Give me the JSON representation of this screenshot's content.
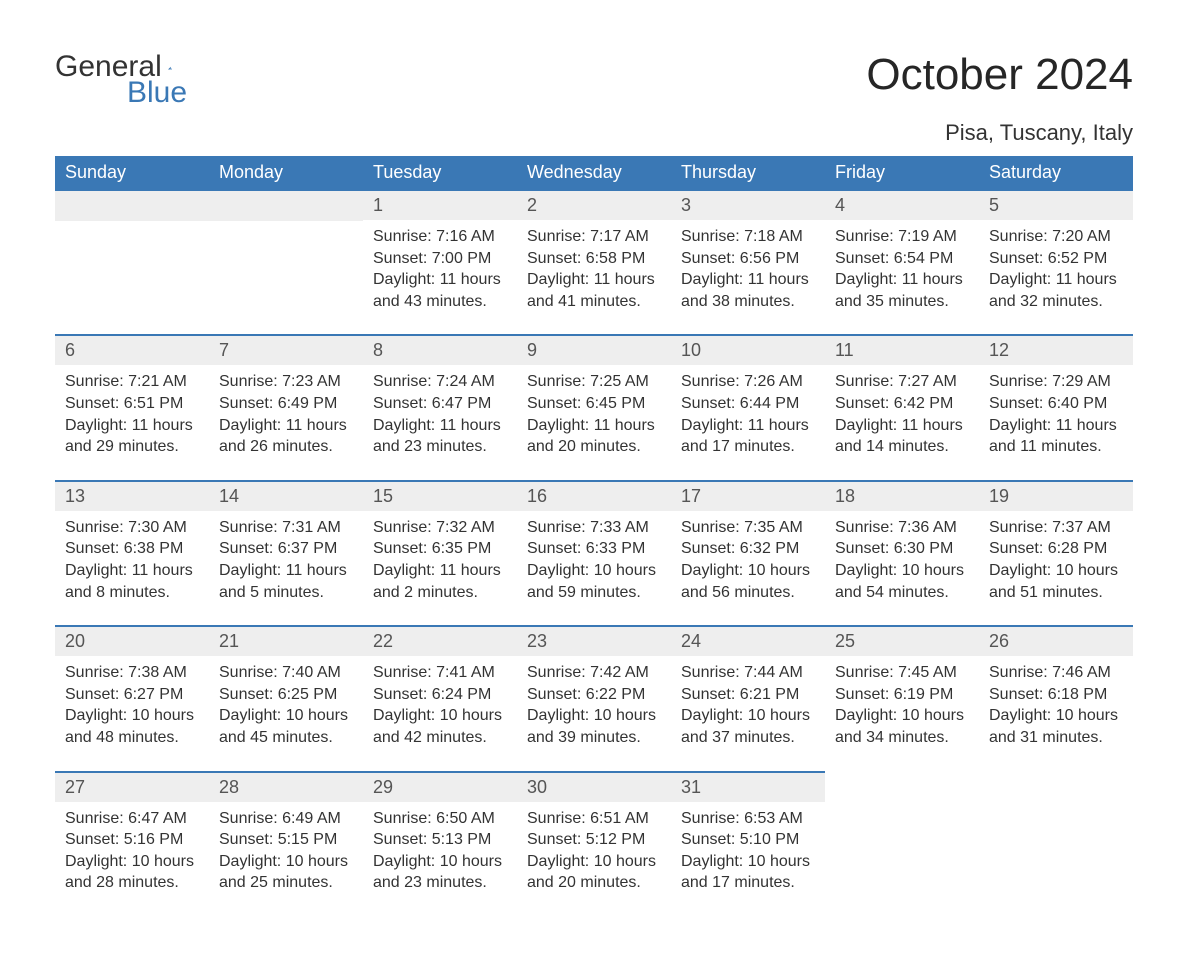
{
  "brand": {
    "part1": "General",
    "part2": "Blue"
  },
  "title": "October 2024",
  "location": "Pisa, Tuscany, Italy",
  "colors": {
    "header_bg": "#3a78b5",
    "header_text": "#ffffff",
    "daynum_bg": "#eeeeee",
    "daynum_border": "#3a78b5",
    "body_bg": "#ffffff",
    "text": "#333333"
  },
  "day_headers": [
    "Sunday",
    "Monday",
    "Tuesday",
    "Wednesday",
    "Thursday",
    "Friday",
    "Saturday"
  ],
  "weeks": [
    [
      {
        "day": "",
        "sunrise": "",
        "sunset": "",
        "daylight": ""
      },
      {
        "day": "",
        "sunrise": "",
        "sunset": "",
        "daylight": ""
      },
      {
        "day": "1",
        "sunrise": "Sunrise: 7:16 AM",
        "sunset": "Sunset: 7:00 PM",
        "daylight": "Daylight: 11 hours and 43 minutes."
      },
      {
        "day": "2",
        "sunrise": "Sunrise: 7:17 AM",
        "sunset": "Sunset: 6:58 PM",
        "daylight": "Daylight: 11 hours and 41 minutes."
      },
      {
        "day": "3",
        "sunrise": "Sunrise: 7:18 AM",
        "sunset": "Sunset: 6:56 PM",
        "daylight": "Daylight: 11 hours and 38 minutes."
      },
      {
        "day": "4",
        "sunrise": "Sunrise: 7:19 AM",
        "sunset": "Sunset: 6:54 PM",
        "daylight": "Daylight: 11 hours and 35 minutes."
      },
      {
        "day": "5",
        "sunrise": "Sunrise: 7:20 AM",
        "sunset": "Sunset: 6:52 PM",
        "daylight": "Daylight: 11 hours and 32 minutes."
      }
    ],
    [
      {
        "day": "6",
        "sunrise": "Sunrise: 7:21 AM",
        "sunset": "Sunset: 6:51 PM",
        "daylight": "Daylight: 11 hours and 29 minutes."
      },
      {
        "day": "7",
        "sunrise": "Sunrise: 7:23 AM",
        "sunset": "Sunset: 6:49 PM",
        "daylight": "Daylight: 11 hours and 26 minutes."
      },
      {
        "day": "8",
        "sunrise": "Sunrise: 7:24 AM",
        "sunset": "Sunset: 6:47 PM",
        "daylight": "Daylight: 11 hours and 23 minutes."
      },
      {
        "day": "9",
        "sunrise": "Sunrise: 7:25 AM",
        "sunset": "Sunset: 6:45 PM",
        "daylight": "Daylight: 11 hours and 20 minutes."
      },
      {
        "day": "10",
        "sunrise": "Sunrise: 7:26 AM",
        "sunset": "Sunset: 6:44 PM",
        "daylight": "Daylight: 11 hours and 17 minutes."
      },
      {
        "day": "11",
        "sunrise": "Sunrise: 7:27 AM",
        "sunset": "Sunset: 6:42 PM",
        "daylight": "Daylight: 11 hours and 14 minutes."
      },
      {
        "day": "12",
        "sunrise": "Sunrise: 7:29 AM",
        "sunset": "Sunset: 6:40 PM",
        "daylight": "Daylight: 11 hours and 11 minutes."
      }
    ],
    [
      {
        "day": "13",
        "sunrise": "Sunrise: 7:30 AM",
        "sunset": "Sunset: 6:38 PM",
        "daylight": "Daylight: 11 hours and 8 minutes."
      },
      {
        "day": "14",
        "sunrise": "Sunrise: 7:31 AM",
        "sunset": "Sunset: 6:37 PM",
        "daylight": "Daylight: 11 hours and 5 minutes."
      },
      {
        "day": "15",
        "sunrise": "Sunrise: 7:32 AM",
        "sunset": "Sunset: 6:35 PM",
        "daylight": "Daylight: 11 hours and 2 minutes."
      },
      {
        "day": "16",
        "sunrise": "Sunrise: 7:33 AM",
        "sunset": "Sunset: 6:33 PM",
        "daylight": "Daylight: 10 hours and 59 minutes."
      },
      {
        "day": "17",
        "sunrise": "Sunrise: 7:35 AM",
        "sunset": "Sunset: 6:32 PM",
        "daylight": "Daylight: 10 hours and 56 minutes."
      },
      {
        "day": "18",
        "sunrise": "Sunrise: 7:36 AM",
        "sunset": "Sunset: 6:30 PM",
        "daylight": "Daylight: 10 hours and 54 minutes."
      },
      {
        "day": "19",
        "sunrise": "Sunrise: 7:37 AM",
        "sunset": "Sunset: 6:28 PM",
        "daylight": "Daylight: 10 hours and 51 minutes."
      }
    ],
    [
      {
        "day": "20",
        "sunrise": "Sunrise: 7:38 AM",
        "sunset": "Sunset: 6:27 PM",
        "daylight": "Daylight: 10 hours and 48 minutes."
      },
      {
        "day": "21",
        "sunrise": "Sunrise: 7:40 AM",
        "sunset": "Sunset: 6:25 PM",
        "daylight": "Daylight: 10 hours and 45 minutes."
      },
      {
        "day": "22",
        "sunrise": "Sunrise: 7:41 AM",
        "sunset": "Sunset: 6:24 PM",
        "daylight": "Daylight: 10 hours and 42 minutes."
      },
      {
        "day": "23",
        "sunrise": "Sunrise: 7:42 AM",
        "sunset": "Sunset: 6:22 PM",
        "daylight": "Daylight: 10 hours and 39 minutes."
      },
      {
        "day": "24",
        "sunrise": "Sunrise: 7:44 AM",
        "sunset": "Sunset: 6:21 PM",
        "daylight": "Daylight: 10 hours and 37 minutes."
      },
      {
        "day": "25",
        "sunrise": "Sunrise: 7:45 AM",
        "sunset": "Sunset: 6:19 PM",
        "daylight": "Daylight: 10 hours and 34 minutes."
      },
      {
        "day": "26",
        "sunrise": "Sunrise: 7:46 AM",
        "sunset": "Sunset: 6:18 PM",
        "daylight": "Daylight: 10 hours and 31 minutes."
      }
    ],
    [
      {
        "day": "27",
        "sunrise": "Sunrise: 6:47 AM",
        "sunset": "Sunset: 5:16 PM",
        "daylight": "Daylight: 10 hours and 28 minutes."
      },
      {
        "day": "28",
        "sunrise": "Sunrise: 6:49 AM",
        "sunset": "Sunset: 5:15 PM",
        "daylight": "Daylight: 10 hours and 25 minutes."
      },
      {
        "day": "29",
        "sunrise": "Sunrise: 6:50 AM",
        "sunset": "Sunset: 5:13 PM",
        "daylight": "Daylight: 10 hours and 23 minutes."
      },
      {
        "day": "30",
        "sunrise": "Sunrise: 6:51 AM",
        "sunset": "Sunset: 5:12 PM",
        "daylight": "Daylight: 10 hours and 20 minutes."
      },
      {
        "day": "31",
        "sunrise": "Sunrise: 6:53 AM",
        "sunset": "Sunset: 5:10 PM",
        "daylight": "Daylight: 10 hours and 17 minutes."
      },
      {
        "day": "",
        "sunrise": "",
        "sunset": "",
        "daylight": ""
      },
      {
        "day": "",
        "sunrise": "",
        "sunset": "",
        "daylight": ""
      }
    ]
  ]
}
